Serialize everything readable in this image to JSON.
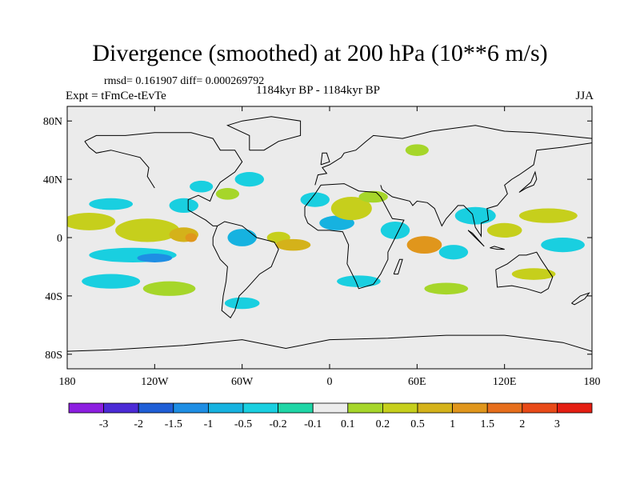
{
  "chart_data": {
    "type": "heatmap",
    "title": "Divergence (smoothed) at 200 hPa (10**6 m/s)",
    "stats_text": "rmsd= 0.161907 diff= 0.000269792",
    "left_label": "Expt = tFmCe-tEvTe",
    "center_label": "1184kyr BP - 1184kyr BP",
    "right_label": "JJA",
    "xlim": [
      -180,
      180
    ],
    "ylim": [
      -90,
      90
    ],
    "x_ticks": [
      {
        "value": -180,
        "label": "180"
      },
      {
        "value": -120,
        "label": "120W"
      },
      {
        "value": -60,
        "label": "60W"
      },
      {
        "value": 0,
        "label": "0"
      },
      {
        "value": 60,
        "label": "60E"
      },
      {
        "value": 120,
        "label": "120E"
      },
      {
        "value": 180,
        "label": "180"
      }
    ],
    "y_ticks": [
      {
        "value": 80,
        "label": "80N"
      },
      {
        "value": 40,
        "label": "40N"
      },
      {
        "value": 0,
        "label": "0"
      },
      {
        "value": -40,
        "label": "40S"
      },
      {
        "value": -80,
        "label": "80S"
      }
    ],
    "colorbar": {
      "colors": [
        "#8c1ee0",
        "#4b2ad6",
        "#1f5ed6",
        "#1e8ee4",
        "#16b2e0",
        "#19cfe0",
        "#1fd6a6",
        "#ececec",
        "#a6d62a",
        "#c6cf1c",
        "#d4b21a",
        "#e0961c",
        "#e66e1c",
        "#e84a18",
        "#e41e12"
      ],
      "labels": [
        "-3",
        "-2",
        "-1.5",
        "-1",
        "-0.5",
        "-0.2",
        "-0.1",
        "0.1",
        "0.2",
        "0.5",
        "1",
        "1.5",
        "2",
        "3"
      ]
    },
    "regions": [
      {
        "lon": -165,
        "lat": 11,
        "rx": 18,
        "ry": 6,
        "level": 9
      },
      {
        "lon": -125,
        "lat": 5,
        "rx": 22,
        "ry": 8,
        "level": 9
      },
      {
        "lon": -100,
        "lat": 2,
        "rx": 10,
        "ry": 5,
        "level": 10
      },
      {
        "lon": -95,
        "lat": 0,
        "rx": 4,
        "ry": 3,
        "level": 11
      },
      {
        "lon": -135,
        "lat": -12,
        "rx": 30,
        "ry": 5,
        "level": 5
      },
      {
        "lon": -120,
        "lat": -14,
        "rx": 12,
        "ry": 3,
        "level": 3
      },
      {
        "lon": -150,
        "lat": 23,
        "rx": 15,
        "ry": 4,
        "level": 5
      },
      {
        "lon": -100,
        "lat": 22,
        "rx": 10,
        "ry": 5,
        "level": 5
      },
      {
        "lon": -88,
        "lat": 35,
        "rx": 8,
        "ry": 4,
        "level": 5
      },
      {
        "lon": -70,
        "lat": 30,
        "rx": 8,
        "ry": 4,
        "level": 8
      },
      {
        "lon": -55,
        "lat": 40,
        "rx": 10,
        "ry": 5,
        "level": 5
      },
      {
        "lon": -60,
        "lat": 0,
        "rx": 10,
        "ry": 6,
        "level": 4
      },
      {
        "lon": -35,
        "lat": 0,
        "rx": 8,
        "ry": 4,
        "level": 9
      },
      {
        "lon": -25,
        "lat": -5,
        "rx": 12,
        "ry": 4,
        "level": 10
      },
      {
        "lon": -10,
        "lat": 26,
        "rx": 10,
        "ry": 5,
        "level": 5
      },
      {
        "lon": 5,
        "lat": 10,
        "rx": 12,
        "ry": 5,
        "level": 4
      },
      {
        "lon": 15,
        "lat": 20,
        "rx": 14,
        "ry": 8,
        "level": 9
      },
      {
        "lon": 30,
        "lat": 28,
        "rx": 10,
        "ry": 4,
        "level": 8
      },
      {
        "lon": 45,
        "lat": 5,
        "rx": 10,
        "ry": 6,
        "level": 5
      },
      {
        "lon": 65,
        "lat": -5,
        "rx": 12,
        "ry": 6,
        "level": 11
      },
      {
        "lon": 85,
        "lat": -10,
        "rx": 10,
        "ry": 5,
        "level": 5
      },
      {
        "lon": 100,
        "lat": 15,
        "rx": 14,
        "ry": 6,
        "level": 5
      },
      {
        "lon": 120,
        "lat": 5,
        "rx": 12,
        "ry": 5,
        "level": 9
      },
      {
        "lon": 150,
        "lat": 15,
        "rx": 20,
        "ry": 5,
        "level": 9
      },
      {
        "lon": 160,
        "lat": -5,
        "rx": 15,
        "ry": 5,
        "level": 5
      },
      {
        "lon": 140,
        "lat": -25,
        "rx": 15,
        "ry": 4,
        "level": 9
      },
      {
        "lon": -150,
        "lat": -30,
        "rx": 20,
        "ry": 5,
        "level": 5
      },
      {
        "lon": -110,
        "lat": -35,
        "rx": 18,
        "ry": 5,
        "level": 8
      },
      {
        "lon": -60,
        "lat": -45,
        "rx": 12,
        "ry": 4,
        "level": 5
      },
      {
        "lon": 20,
        "lat": -30,
        "rx": 15,
        "ry": 4,
        "level": 5
      },
      {
        "lon": 80,
        "lat": -35,
        "rx": 15,
        "ry": 4,
        "level": 8
      },
      {
        "lon": 60,
        "lat": 60,
        "rx": 8,
        "ry": 4,
        "level": 8
      }
    ]
  }
}
